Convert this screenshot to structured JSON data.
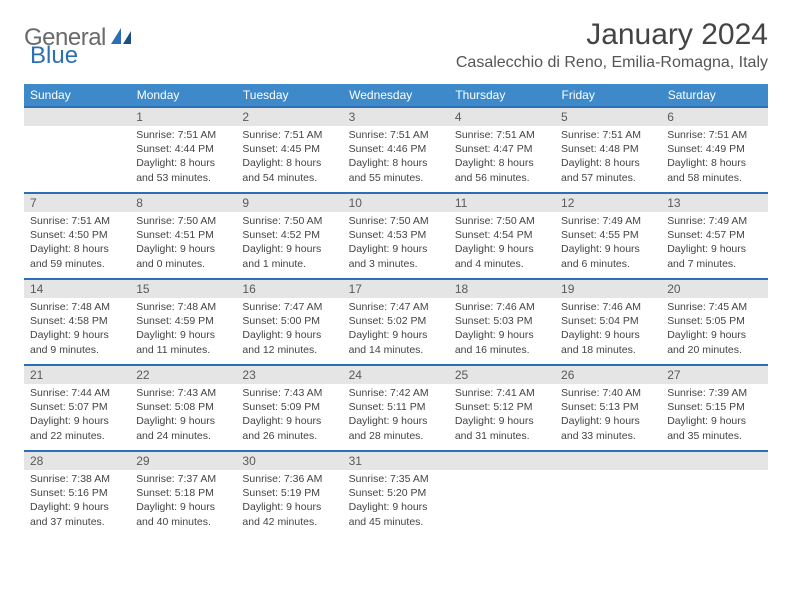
{
  "logo": {
    "text1": "General",
    "text2": "Blue"
  },
  "title": "January 2024",
  "location": "Casalecchio di Reno, Emilia-Romagna, Italy",
  "colors": {
    "header_bg": "#3d89c9",
    "header_fg": "#ffffff",
    "row_border": "#2c6fb5",
    "daynum_bg": "#e5e5e5",
    "logo_gray": "#6a6a6a",
    "logo_blue": "#2c6fb5"
  },
  "weekdays": [
    "Sunday",
    "Monday",
    "Tuesday",
    "Wednesday",
    "Thursday",
    "Friday",
    "Saturday"
  ],
  "weeks": [
    [
      {
        "n": "",
        "empty": true
      },
      {
        "n": "1",
        "sr": "Sunrise: 7:51 AM",
        "ss": "Sunset: 4:44 PM",
        "dl": "Daylight: 8 hours and 53 minutes."
      },
      {
        "n": "2",
        "sr": "Sunrise: 7:51 AM",
        "ss": "Sunset: 4:45 PM",
        "dl": "Daylight: 8 hours and 54 minutes."
      },
      {
        "n": "3",
        "sr": "Sunrise: 7:51 AM",
        "ss": "Sunset: 4:46 PM",
        "dl": "Daylight: 8 hours and 55 minutes."
      },
      {
        "n": "4",
        "sr": "Sunrise: 7:51 AM",
        "ss": "Sunset: 4:47 PM",
        "dl": "Daylight: 8 hours and 56 minutes."
      },
      {
        "n": "5",
        "sr": "Sunrise: 7:51 AM",
        "ss": "Sunset: 4:48 PM",
        "dl": "Daylight: 8 hours and 57 minutes."
      },
      {
        "n": "6",
        "sr": "Sunrise: 7:51 AM",
        "ss": "Sunset: 4:49 PM",
        "dl": "Daylight: 8 hours and 58 minutes."
      }
    ],
    [
      {
        "n": "7",
        "sr": "Sunrise: 7:51 AM",
        "ss": "Sunset: 4:50 PM",
        "dl": "Daylight: 8 hours and 59 minutes."
      },
      {
        "n": "8",
        "sr": "Sunrise: 7:50 AM",
        "ss": "Sunset: 4:51 PM",
        "dl": "Daylight: 9 hours and 0 minutes."
      },
      {
        "n": "9",
        "sr": "Sunrise: 7:50 AM",
        "ss": "Sunset: 4:52 PM",
        "dl": "Daylight: 9 hours and 1 minute."
      },
      {
        "n": "10",
        "sr": "Sunrise: 7:50 AM",
        "ss": "Sunset: 4:53 PM",
        "dl": "Daylight: 9 hours and 3 minutes."
      },
      {
        "n": "11",
        "sr": "Sunrise: 7:50 AM",
        "ss": "Sunset: 4:54 PM",
        "dl": "Daylight: 9 hours and 4 minutes."
      },
      {
        "n": "12",
        "sr": "Sunrise: 7:49 AM",
        "ss": "Sunset: 4:55 PM",
        "dl": "Daylight: 9 hours and 6 minutes."
      },
      {
        "n": "13",
        "sr": "Sunrise: 7:49 AM",
        "ss": "Sunset: 4:57 PM",
        "dl": "Daylight: 9 hours and 7 minutes."
      }
    ],
    [
      {
        "n": "14",
        "sr": "Sunrise: 7:48 AM",
        "ss": "Sunset: 4:58 PM",
        "dl": "Daylight: 9 hours and 9 minutes."
      },
      {
        "n": "15",
        "sr": "Sunrise: 7:48 AM",
        "ss": "Sunset: 4:59 PM",
        "dl": "Daylight: 9 hours and 11 minutes."
      },
      {
        "n": "16",
        "sr": "Sunrise: 7:47 AM",
        "ss": "Sunset: 5:00 PM",
        "dl": "Daylight: 9 hours and 12 minutes."
      },
      {
        "n": "17",
        "sr": "Sunrise: 7:47 AM",
        "ss": "Sunset: 5:02 PM",
        "dl": "Daylight: 9 hours and 14 minutes."
      },
      {
        "n": "18",
        "sr": "Sunrise: 7:46 AM",
        "ss": "Sunset: 5:03 PM",
        "dl": "Daylight: 9 hours and 16 minutes."
      },
      {
        "n": "19",
        "sr": "Sunrise: 7:46 AM",
        "ss": "Sunset: 5:04 PM",
        "dl": "Daylight: 9 hours and 18 minutes."
      },
      {
        "n": "20",
        "sr": "Sunrise: 7:45 AM",
        "ss": "Sunset: 5:05 PM",
        "dl": "Daylight: 9 hours and 20 minutes."
      }
    ],
    [
      {
        "n": "21",
        "sr": "Sunrise: 7:44 AM",
        "ss": "Sunset: 5:07 PM",
        "dl": "Daylight: 9 hours and 22 minutes."
      },
      {
        "n": "22",
        "sr": "Sunrise: 7:43 AM",
        "ss": "Sunset: 5:08 PM",
        "dl": "Daylight: 9 hours and 24 minutes."
      },
      {
        "n": "23",
        "sr": "Sunrise: 7:43 AM",
        "ss": "Sunset: 5:09 PM",
        "dl": "Daylight: 9 hours and 26 minutes."
      },
      {
        "n": "24",
        "sr": "Sunrise: 7:42 AM",
        "ss": "Sunset: 5:11 PM",
        "dl": "Daylight: 9 hours and 28 minutes."
      },
      {
        "n": "25",
        "sr": "Sunrise: 7:41 AM",
        "ss": "Sunset: 5:12 PM",
        "dl": "Daylight: 9 hours and 31 minutes."
      },
      {
        "n": "26",
        "sr": "Sunrise: 7:40 AM",
        "ss": "Sunset: 5:13 PM",
        "dl": "Daylight: 9 hours and 33 minutes."
      },
      {
        "n": "27",
        "sr": "Sunrise: 7:39 AM",
        "ss": "Sunset: 5:15 PM",
        "dl": "Daylight: 9 hours and 35 minutes."
      }
    ],
    [
      {
        "n": "28",
        "sr": "Sunrise: 7:38 AM",
        "ss": "Sunset: 5:16 PM",
        "dl": "Daylight: 9 hours and 37 minutes."
      },
      {
        "n": "29",
        "sr": "Sunrise: 7:37 AM",
        "ss": "Sunset: 5:18 PM",
        "dl": "Daylight: 9 hours and 40 minutes."
      },
      {
        "n": "30",
        "sr": "Sunrise: 7:36 AM",
        "ss": "Sunset: 5:19 PM",
        "dl": "Daylight: 9 hours and 42 minutes."
      },
      {
        "n": "31",
        "sr": "Sunrise: 7:35 AM",
        "ss": "Sunset: 5:20 PM",
        "dl": "Daylight: 9 hours and 45 minutes."
      },
      {
        "n": "",
        "empty": true
      },
      {
        "n": "",
        "empty": true
      },
      {
        "n": "",
        "empty": true
      }
    ]
  ]
}
